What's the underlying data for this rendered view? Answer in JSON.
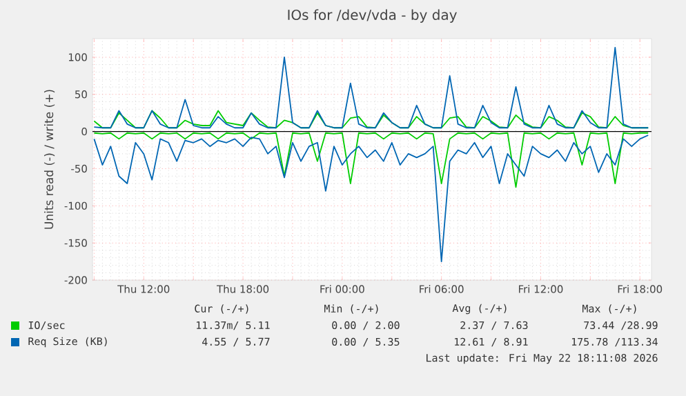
{
  "chart_data": {
    "type": "line",
    "title": "IOs for /dev/vda - by day",
    "ylabel": "Units read (-) / write (+)",
    "x": [
      "2026-05-21T09:00",
      "2026-05-21T09:30",
      "2026-05-21T10:00",
      "2026-05-21T10:30",
      "2026-05-21T11:00",
      "2026-05-21T11:30",
      "2026-05-21T12:00",
      "2026-05-21T12:30",
      "2026-05-21T13:00",
      "2026-05-21T13:30",
      "2026-05-21T14:00",
      "2026-05-21T14:30",
      "2026-05-21T15:00",
      "2026-05-21T15:30",
      "2026-05-21T16:00",
      "2026-05-21T16:30",
      "2026-05-21T17:00",
      "2026-05-21T17:30",
      "2026-05-21T18:00",
      "2026-05-21T18:30",
      "2026-05-21T19:00",
      "2026-05-21T19:30",
      "2026-05-21T20:00",
      "2026-05-21T20:30",
      "2026-05-21T21:00",
      "2026-05-21T21:30",
      "2026-05-21T22:00",
      "2026-05-21T22:30",
      "2026-05-21T23:00",
      "2026-05-21T23:30",
      "2026-05-22T00:00",
      "2026-05-22T00:30",
      "2026-05-22T01:00",
      "2026-05-22T01:30",
      "2026-05-22T02:00",
      "2026-05-22T02:30",
      "2026-05-22T03:00",
      "2026-05-22T03:30",
      "2026-05-22T04:00",
      "2026-05-22T04:30",
      "2026-05-22T05:00",
      "2026-05-22T05:30",
      "2026-05-22T06:00",
      "2026-05-22T06:30",
      "2026-05-22T07:00",
      "2026-05-22T07:30",
      "2026-05-22T08:00",
      "2026-05-22T08:30",
      "2026-05-22T09:00",
      "2026-05-22T09:30",
      "2026-05-22T10:00",
      "2026-05-22T10:30",
      "2026-05-22T11:00",
      "2026-05-22T11:30",
      "2026-05-22T12:00",
      "2026-05-22T12:30",
      "2026-05-22T13:00",
      "2026-05-22T13:30",
      "2026-05-22T14:00",
      "2026-05-22T14:30",
      "2026-05-22T15:00",
      "2026-05-22T15:30",
      "2026-05-22T16:00",
      "2026-05-22T16:30",
      "2026-05-22T17:00",
      "2026-05-22T17:30",
      "2026-05-22T18:00",
      "2026-05-22T18:30"
    ],
    "series": [
      {
        "color": "#00cc00",
        "values": [
          -2,
          -3,
          -2,
          -10,
          -2,
          -3,
          -2,
          -10,
          -2,
          -3,
          -2,
          -10,
          -2,
          -3,
          -2,
          -10,
          -2,
          -3,
          -2,
          -10,
          -2,
          -3,
          -2,
          -60,
          -2,
          -3,
          -2,
          -40,
          -2,
          -3,
          -2,
          -70,
          -2,
          -3,
          -2,
          -10,
          -2,
          -3,
          -2,
          -10,
          -2,
          -3,
          -70,
          -10,
          -2,
          -3,
          -2,
          -10,
          -2,
          -3,
          -2,
          -75,
          -2,
          -3,
          -2,
          -10,
          -2,
          -3,
          -2,
          -45,
          -2,
          -3,
          -2,
          -70,
          -2,
          -3,
          -2,
          -2
        ]
      },
      {
        "name": "IO/sec",
        "color": "#00cc00",
        "values": [
          14,
          5,
          5,
          25,
          15,
          5,
          5,
          28,
          18,
          5,
          5,
          15,
          10,
          8,
          8,
          28,
          12,
          10,
          8,
          25,
          15,
          6,
          5,
          15,
          12,
          5,
          5,
          25,
          8,
          5,
          5,
          18,
          20,
          6,
          5,
          22,
          12,
          5,
          5,
          20,
          10,
          5,
          5,
          18,
          20,
          6,
          5,
          20,
          14,
          6,
          5,
          22,
          12,
          6,
          5,
          20,
          15,
          6,
          5,
          25,
          20,
          6,
          5,
          20,
          8,
          5,
          5,
          5
        ]
      },
      {
        "color": "#0066b3",
        "values": [
          -10,
          -45,
          -20,
          -60,
          -70,
          -15,
          -30,
          -65,
          -10,
          -15,
          -40,
          -12,
          -15,
          -10,
          -20,
          -12,
          -15,
          -10,
          -20,
          -8,
          -10,
          -30,
          -20,
          -62,
          -15,
          -40,
          -20,
          -15,
          -80,
          -20,
          -45,
          -30,
          -20,
          -35,
          -25,
          -40,
          -15,
          -45,
          -30,
          -35,
          -30,
          -20,
          -175,
          -40,
          -25,
          -30,
          -15,
          -35,
          -20,
          -70,
          -30,
          -45,
          -60,
          -20,
          -30,
          -35,
          -25,
          -40,
          -15,
          -30,
          -20,
          -55,
          -30,
          -45,
          -10,
          -20,
          -10,
          -5
        ]
      },
      {
        "name": "Req Size (KB)",
        "color": "#0066b3",
        "values": [
          6,
          5,
          5,
          28,
          10,
          5,
          5,
          28,
          10,
          5,
          5,
          43,
          8,
          5,
          5,
          20,
          10,
          5,
          5,
          25,
          10,
          5,
          5,
          100,
          12,
          5,
          5,
          28,
          8,
          5,
          5,
          65,
          10,
          5,
          5,
          25,
          12,
          5,
          5,
          35,
          10,
          5,
          5,
          75,
          10,
          5,
          5,
          35,
          12,
          5,
          5,
          60,
          10,
          5,
          5,
          35,
          10,
          5,
          5,
          28,
          12,
          5,
          5,
          113,
          10,
          5,
          5,
          5
        ]
      }
    ],
    "xlim": [
      "2026-05-21T08:54",
      "2026-05-22T18:42"
    ],
    "xticks": [
      {
        "value": "2026-05-21T09:00",
        "label": null
      },
      {
        "value": "2026-05-21T12:00",
        "label": "Thu 12:00"
      },
      {
        "value": "2026-05-21T15:00",
        "label": null
      },
      {
        "value": "2026-05-21T18:00",
        "label": "Thu 18:00"
      },
      {
        "value": "2026-05-21T21:00",
        "label": null
      },
      {
        "value": "2026-05-22T00:00",
        "label": "Fri 00:00"
      },
      {
        "value": "2026-05-22T03:00",
        "label": null
      },
      {
        "value": "2026-05-22T06:00",
        "label": "Fri 06:00"
      },
      {
        "value": "2026-05-22T09:00",
        "label": null
      },
      {
        "value": "2026-05-22T12:00",
        "label": "Fri 12:00"
      },
      {
        "value": "2026-05-22T15:00",
        "label": null
      },
      {
        "value": "2026-05-22T18:00",
        "label": "Fri 18:00"
      }
    ],
    "ylim": [
      -200,
      125
    ],
    "yticks": [
      -200,
      -150,
      -100,
      -50,
      0,
      50,
      100
    ],
    "grid": true,
    "legend": "bottom",
    "ref_lines": [
      {
        "axis": "y",
        "value": 0,
        "color": "#000000"
      }
    ],
    "annotations": [
      "Cur (-/+)",
      "Min (-/+)",
      "Avg (-/+)",
      "Max (-/+)",
      "11.37m/ 5.11",
      "0.00 / 2.00",
      "2.37 / 7.63",
      "73.44 /28.99",
      "4.55 / 5.77",
      "0.00 / 5.35",
      "12.61 / 8.91",
      "175.78 /113.34",
      "Last update: Fri May 22 18:11:08 2026"
    ]
  }
}
